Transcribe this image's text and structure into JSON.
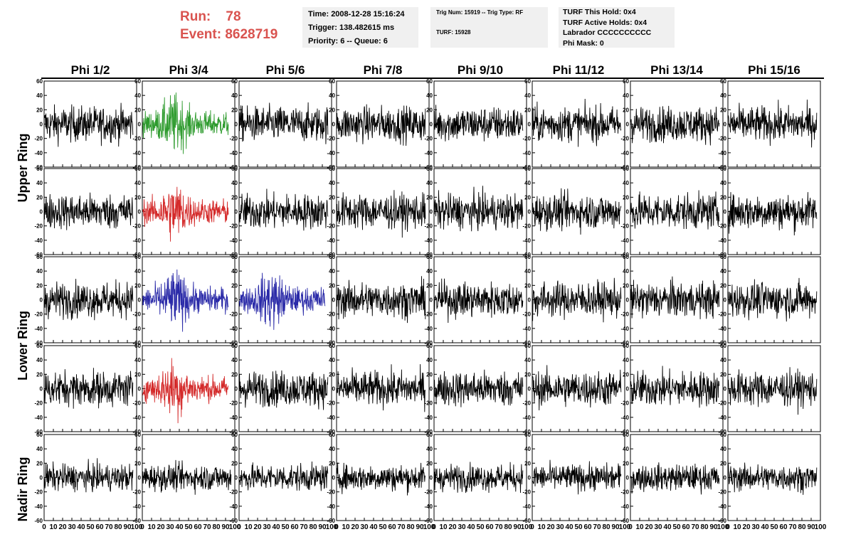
{
  "header": {
    "run_label": "Run:",
    "run_value": "78",
    "event_label": "Event:",
    "event_value": "8628719",
    "time": "Time: 2008-12-28 15:16:24",
    "trigger": "Trigger: 138.482615 ms",
    "priority_queue": "Priority: 6 -- Queue: 6",
    "trig_num": "Trig Num: 15919 -- Trig Type: RF",
    "turf": "TURF: 15928",
    "turf_hold": "TURF This Hold: 0x4",
    "turf_active": "TURF Active Holds: 0x4",
    "labrador": "Labrador CCCCCCCCCC",
    "phi_mask": "Phi Mask: 0"
  },
  "columns": [
    "Phi 1/2",
    "Phi 3/4",
    "Phi 5/6",
    "Phi 7/8",
    "Phi 9/10",
    "Phi 11/12",
    "Phi 13/14",
    "Phi 15/16"
  ],
  "rows": [
    "Upper Ring",
    "Lower Ring",
    "Nadir Ring"
  ],
  "colors": {
    "trace_default": "#000000",
    "trace_green": "#2e9b2e",
    "trace_red": "#d42a2a",
    "trace_blue": "#2a2aa8",
    "header_red": "#d9534f",
    "info_bg": "#f0f0f0"
  },
  "chart_data": {
    "type": "line",
    "title": "",
    "xlabel": "",
    "ylabel": "",
    "xlim": [
      0,
      100
    ],
    "ylim": [
      -60,
      60
    ],
    "x_ticks": [
      "0",
      "10",
      "20",
      "30",
      "40",
      "50",
      "60",
      "70",
      "80",
      "90",
      "100"
    ],
    "y_ticks": [
      "60",
      "40",
      "20",
      "0",
      "-20",
      "-40",
      "-60"
    ],
    "grid": false,
    "panels_rows": 5,
    "panels_cols": 8,
    "highlighted_panels": [
      {
        "row": 0,
        "col": 1,
        "color": "green"
      },
      {
        "row": 1,
        "col": 1,
        "color": "red"
      },
      {
        "row": 2,
        "col": 1,
        "color": "blue"
      },
      {
        "row": 2,
        "col": 2,
        "color": "blue"
      },
      {
        "row": 3,
        "col": 1,
        "color": "red"
      }
    ]
  }
}
